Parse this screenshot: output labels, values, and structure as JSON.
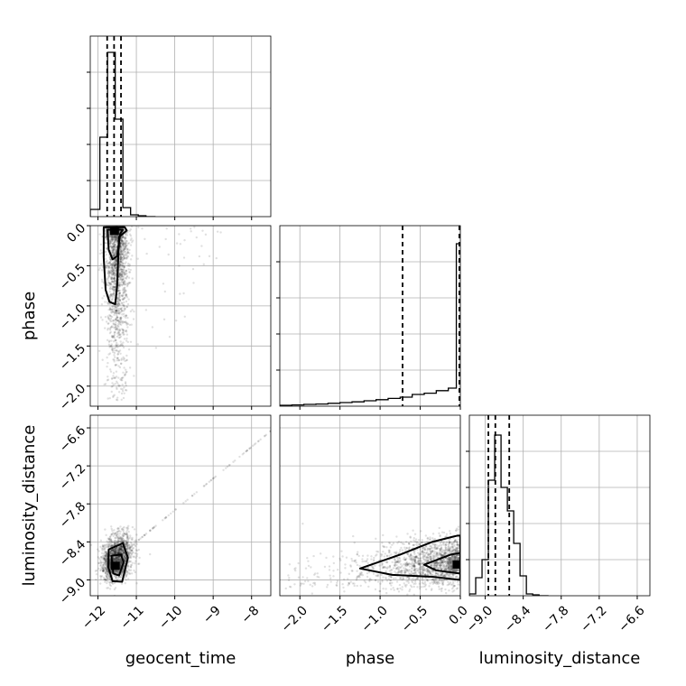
{
  "chart_data": {
    "type": "corner",
    "parameters": [
      "geocent_time",
      "phase",
      "luminosity_distance"
    ],
    "grid": true,
    "axes": {
      "geocent_time": {
        "range": [
          -12.2,
          -7.5
        ],
        "ticks": [
          -12,
          -11,
          -10,
          -9,
          -8
        ],
        "tick_labels": [
          "−12",
          "−11",
          "−10",
          "−9",
          "−8"
        ]
      },
      "phase": {
        "range": [
          -2.25,
          0.0
        ],
        "ticks": [
          -2.0,
          -1.5,
          -1.0,
          -0.5,
          0.0
        ],
        "tick_labels": [
          "−2.0",
          "−1.5",
          "−1.0",
          "−0.5",
          "0.0"
        ]
      },
      "luminosity_distance": {
        "range": [
          -9.25,
          -6.4
        ],
        "ticks": [
          -9.0,
          -8.4,
          -7.8,
          -7.2,
          -6.6
        ],
        "tick_labels": [
          "−9.0",
          "−8.4",
          "−7.8",
          "−7.2",
          "−6.6"
        ]
      }
    },
    "histograms": {
      "geocent_time": {
        "bins": [
          -12.2,
          -11.95,
          -11.75,
          -11.55,
          -11.35,
          -11.15,
          -10.95,
          -10.75,
          -10.5
        ],
        "counts": [
          0.04,
          0.44,
          0.91,
          0.54,
          0.05,
          0.01,
          0.005,
          0
        ],
        "quantiles": [
          -11.76,
          -11.58,
          -11.4
        ]
      },
      "phase": {
        "bins": [
          -2.25,
          -2.1,
          -1.95,
          -1.8,
          -1.65,
          -1.5,
          -1.35,
          -1.2,
          -1.05,
          -0.9,
          -0.75,
          -0.6,
          -0.45,
          -0.3,
          -0.15,
          -0.05,
          0.0
        ],
        "counts": [
          0.005,
          0.007,
          0.01,
          0.012,
          0.016,
          0.02,
          0.024,
          0.03,
          0.036,
          0.043,
          0.05,
          0.065,
          0.072,
          0.086,
          0.1,
          0.9
        ],
        "quantiles": [
          -0.72,
          -0.01,
          0.0
        ]
      },
      "luminosity_distance": {
        "bins": [
          -9.25,
          -9.15,
          -9.05,
          -8.95,
          -8.85,
          -8.75,
          -8.65,
          -8.55,
          -8.45,
          -8.35,
          -8.25,
          -8.15,
          -8.0
        ],
        "counts": [
          0.01,
          0.1,
          0.2,
          0.64,
          0.89,
          0.6,
          0.47,
          0.29,
          0.11,
          0.01,
          0.005,
          0
        ],
        "quantiles": [
          -8.95,
          -8.84,
          -8.62
        ]
      }
    },
    "scatter": {
      "phase_vs_geocent_time": {
        "center": [
          -11.5,
          -1.0
        ],
        "spread": [
          0.15,
          0.45
        ],
        "peak_cell": [
          -11.57,
          -0.06
        ],
        "contours": [
          [
            [
              -11.85,
              -0.02
            ],
            [
              -11.3,
              -0.02
            ],
            [
              -11.25,
              -0.06
            ],
            [
              -11.45,
              -0.14
            ],
            [
              -11.5,
              -0.75
            ],
            [
              -11.55,
              -0.98
            ],
            [
              -11.7,
              -0.95
            ],
            [
              -11.8,
              -0.8
            ],
            [
              -11.85,
              -0.4
            ]
          ],
          [
            [
              -11.75,
              -0.05
            ],
            [
              -11.35,
              -0.05
            ],
            [
              -11.42,
              -0.1
            ],
            [
              -11.5,
              -0.38
            ],
            [
              -11.62,
              -0.42
            ],
            [
              -11.72,
              -0.3
            ]
          ]
        ]
      },
      "luminosity_distance_vs_geocent_time": {
        "center": [
          -11.5,
          -8.65
        ],
        "spread": [
          0.2,
          0.22
        ],
        "peak_cell": [
          -11.55,
          -8.77
        ],
        "contours": [
          [
            [
              -11.72,
              -8.52
            ],
            [
              -11.35,
              -8.42
            ],
            [
              -11.22,
              -8.65
            ],
            [
              -11.37,
              -9.03
            ],
            [
              -11.62,
              -9.02
            ],
            [
              -11.73,
              -8.8
            ]
          ],
          [
            [
              -11.65,
              -8.62
            ],
            [
              -11.4,
              -8.6
            ],
            [
              -11.33,
              -8.72
            ],
            [
              -11.45,
              -8.93
            ],
            [
              -11.6,
              -8.9
            ]
          ]
        ]
      },
      "luminosity_distance_vs_phase": {
        "center": [
          -0.55,
          -8.75
        ],
        "spread": [
          0.45,
          0.2
        ],
        "peak_cell": [
          -0.04,
          -8.75
        ],
        "contours": [
          [
            [
              -1.25,
              -8.82
            ],
            [
              -0.75,
              -8.6
            ],
            [
              -0.35,
              -8.4
            ],
            [
              -0.1,
              -8.32
            ],
            [
              -0.03,
              -8.3
            ],
            [
              0.0,
              -8.3
            ],
            [
              0.0,
              -9.0
            ],
            [
              -0.35,
              -8.95
            ],
            [
              -0.85,
              -8.92
            ]
          ],
          [
            [
              -0.45,
              -8.76
            ],
            [
              -0.12,
              -8.6
            ],
            [
              -0.02,
              -8.58
            ],
            [
              0.0,
              -8.58
            ],
            [
              0.0,
              -8.9
            ],
            [
              -0.3,
              -8.85
            ]
          ]
        ]
      }
    }
  }
}
